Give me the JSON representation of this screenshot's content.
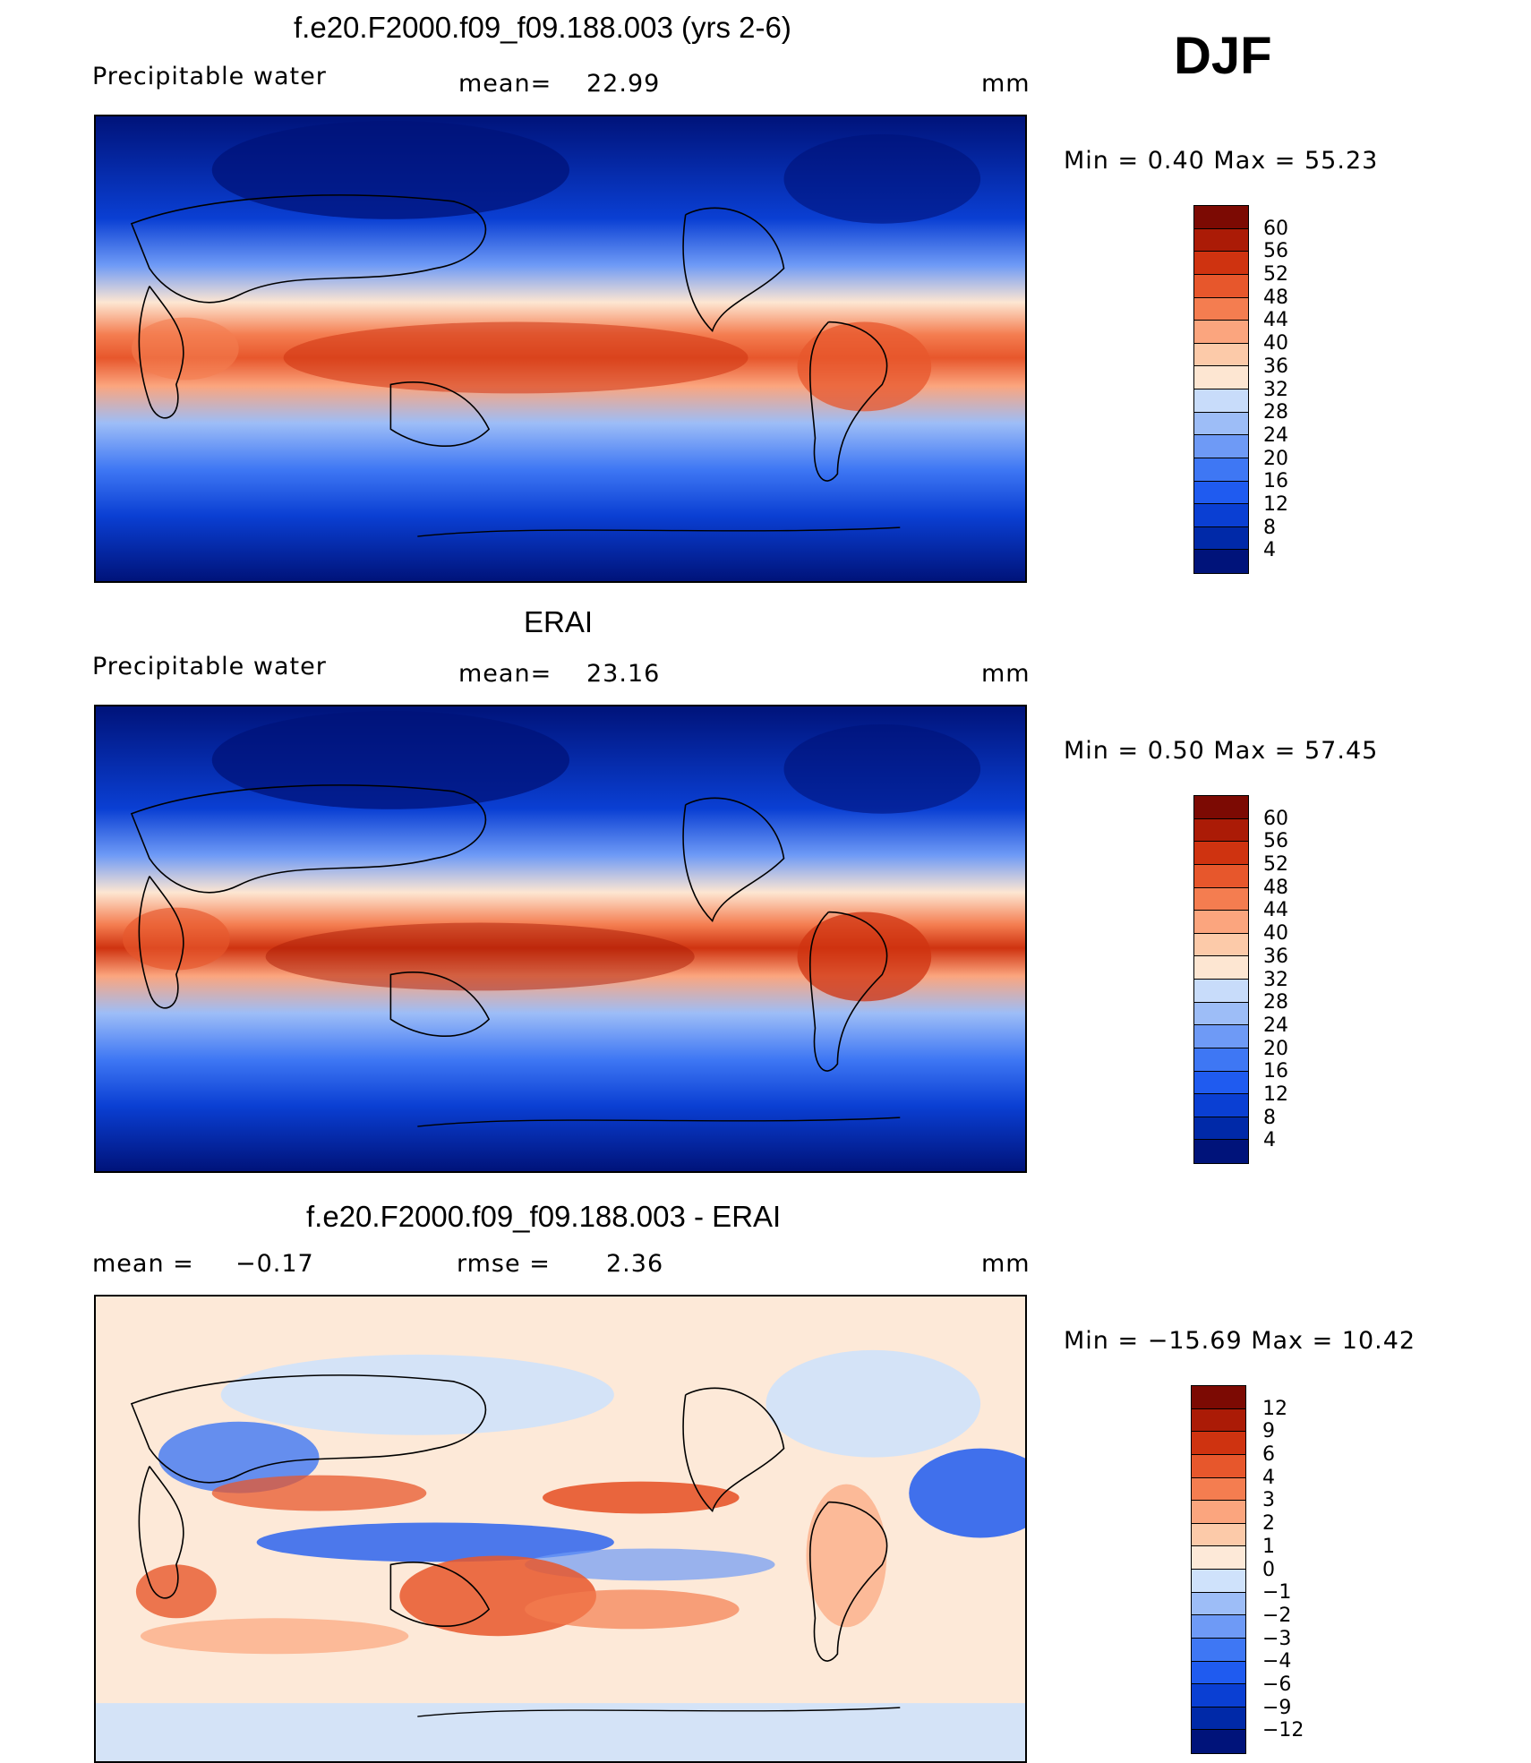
{
  "season": "DJF",
  "colors": {
    "field": [
      "#00137a",
      "#0029a8",
      "#0a3fd3",
      "#1f5bf0",
      "#3e77f4",
      "#6e9af6",
      "#9dbdf7",
      "#c8dcfa",
      "#fde6d2",
      "#fccaa9",
      "#fba57e",
      "#f47d50",
      "#e7572c",
      "#cf3310",
      "#ab1b06",
      "#7c0a03"
    ],
    "diff": [
      "#00137a",
      "#0029a8",
      "#0a3fd3",
      "#1f5bf0",
      "#3e77f4",
      "#6e9af6",
      "#9dbdf7",
      "#cfe2fb",
      "#fde9d8",
      "#fccaa9",
      "#fba57e",
      "#f47d50",
      "#e7572c",
      "#cf3310",
      "#ab1b06",
      "#7c0a03"
    ]
  },
  "panels": [
    {
      "title": "f.e20.F2000.f09_f09.188.003 (yrs 2-6)",
      "left_label": "Precipitable  water",
      "center_label": "mean=",
      "center_value": "22.99",
      "units": "mm",
      "minmax": "Min  =     0.40  Max  =     55.23"
    },
    {
      "title": "ERAI",
      "left_label": "Precipitable  water",
      "center_label": "mean=",
      "center_value": "23.16",
      "units": "mm",
      "minmax": "Min  =     0.50  Max  =     57.45"
    },
    {
      "title": "f.e20.F2000.f09_f09.188.003 - ERAI",
      "left_label": "mean  =",
      "left_value": "−0.17",
      "center_label": "rmse  =",
      "center_value": "2.36",
      "units": "mm",
      "minmax": "Min  =  −15.69  Max  =     10.42"
    }
  ],
  "chart_data": [
    {
      "type": "heatmap",
      "title": "f.e20.F2000.f09_f09.188.003 (yrs 2-6)",
      "variable": "Precipitable  water",
      "units": "mm",
      "mean": 22.99,
      "min": 0.4,
      "max": 55.23,
      "colorbar_levels": [
        "60",
        "56",
        "52",
        "48",
        "44",
        "40",
        "36",
        "32",
        "28",
        "24",
        "20",
        "16",
        "12",
        "8",
        "4"
      ]
    },
    {
      "type": "heatmap",
      "title": "ERAI",
      "variable": "Precipitable  water",
      "units": "mm",
      "mean": 23.16,
      "min": 0.5,
      "max": 57.45,
      "colorbar_levels": [
        "60",
        "56",
        "52",
        "48",
        "44",
        "40",
        "36",
        "32",
        "28",
        "24",
        "20",
        "16",
        "12",
        "8",
        "4"
      ]
    },
    {
      "type": "heatmap",
      "title": "f.e20.F2000.f09_f09.188.003 - ERAI",
      "units": "mm",
      "mean": -0.17,
      "rmse": 2.36,
      "min": -15.69,
      "max": 10.42,
      "colorbar_levels": [
        "12",
        "9",
        "6",
        "4",
        "3",
        "2",
        "1",
        "0",
        "−1",
        "−2",
        "−3",
        "−4",
        "−6",
        "−9",
        "−12"
      ]
    }
  ]
}
